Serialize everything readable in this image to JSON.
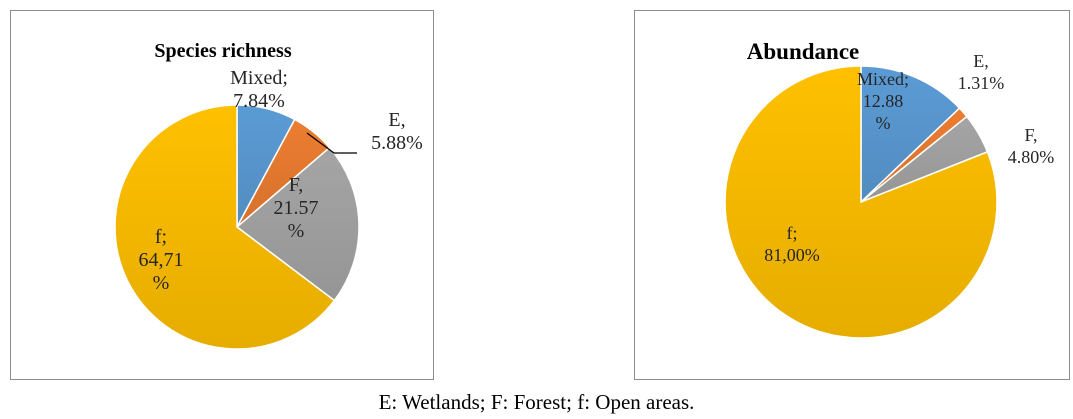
{
  "caption": "E: Wetlands; F: Forest; f: Open areas.",
  "chart_data": [
    {
      "type": "pie",
      "title": "Species richness",
      "slices": [
        {
          "label": "Mixed",
          "value": 7.84,
          "color": "#5b9bd5",
          "text_lines": [
            "Mixed;",
            "7.84%"
          ]
        },
        {
          "label": "E",
          "value": 5.88,
          "color": "#ed7d31",
          "text_lines": [
            "E,",
            "5.88%"
          ]
        },
        {
          "label": "F",
          "value": 21.57,
          "color": "#a5a5a5",
          "text_lines": [
            "F,",
            "21.57",
            "%"
          ]
        },
        {
          "label": "f",
          "value": 64.71,
          "color": "#ffc000",
          "text_lines": [
            "f;",
            "64,71",
            "%"
          ]
        }
      ]
    },
    {
      "type": "pie",
      "title": "Abundance",
      "slices": [
        {
          "label": "Mixed",
          "value": 12.88,
          "color": "#5b9bd5",
          "text_lines": [
            "Mixed;",
            "12.88",
            "%"
          ]
        },
        {
          "label": "E",
          "value": 1.31,
          "color": "#ed7d31",
          "text_lines": [
            "E,",
            "1.31%"
          ]
        },
        {
          "label": "F",
          "value": 4.8,
          "color": "#a5a5a5",
          "text_lines": [
            "F,",
            "4.80%"
          ]
        },
        {
          "label": "f",
          "value": 81.0,
          "color": "#ffc000",
          "text_lines": [
            "f;",
            "81,00%"
          ]
        }
      ]
    }
  ]
}
